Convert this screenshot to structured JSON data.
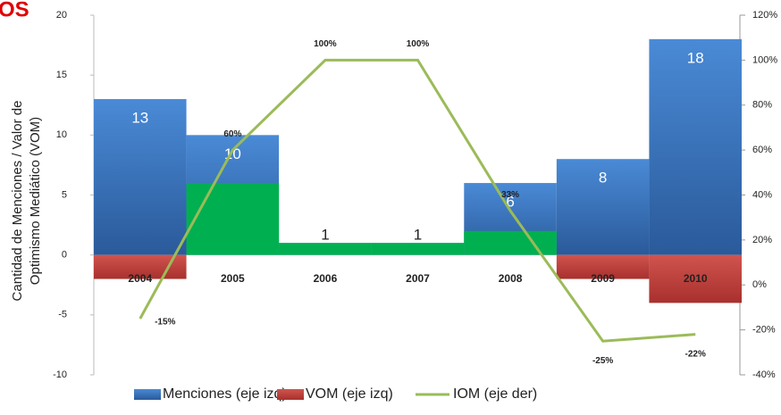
{
  "chart_data": {
    "type": "bar",
    "title": "OS",
    "y_label": [
      "Cantidad de Menciones / Valor de",
      "Optimismo Mediático (VOM)"
    ],
    "categories": [
      "2004",
      "2005",
      "2006",
      "2007",
      "2008",
      "2009",
      "2010"
    ],
    "series": [
      {
        "name": "Menciones (eje izq)",
        "color": "#3f7cc6",
        "values": [
          13,
          10,
          1,
          1,
          6,
          8,
          18
        ]
      },
      {
        "name": "VOM (eje izq)",
        "color": "#c0504d",
        "values": [
          -2,
          6,
          1,
          1,
          2,
          -2,
          -4
        ],
        "colors": [
          "#c0504d",
          "#00b050",
          "#00b050",
          "#00b050",
          "#00b050",
          "#c0504d",
          "#c0504d"
        ]
      },
      {
        "name": "IOM (eje der)",
        "color": "#9bbb59",
        "axis": "y2",
        "type": "line",
        "values": [
          -15,
          60,
          100,
          100,
          33,
          -25,
          -22
        ],
        "value_labels": [
          "-15%",
          "60%",
          "100%",
          "100%",
          "33%",
          "-25%",
          "-22%"
        ]
      }
    ],
    "ylim": [
      -10,
      20
    ],
    "yticks": [
      -10,
      -5,
      0,
      5,
      10,
      15,
      20
    ],
    "y2lim": [
      -40,
      120
    ],
    "y2ticks": [
      {
        "value": -40,
        "label": "-40%"
      },
      {
        "value": -20,
        "label": "-20%"
      },
      {
        "value": 0,
        "label": "0%"
      },
      {
        "value": 20,
        "label": "20%"
      },
      {
        "value": 40,
        "label": "40%"
      },
      {
        "value": 60,
        "label": "60%"
      },
      {
        "value": 80,
        "label": "80%"
      },
      {
        "value": 100,
        "label": "100%"
      },
      {
        "value": 120,
        "label": "120%"
      }
    ],
    "grid": false
  }
}
